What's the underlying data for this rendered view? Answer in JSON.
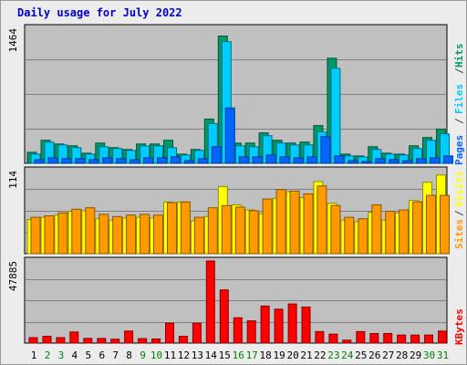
{
  "title": "Daily usage for July 2022",
  "colors": {
    "hits": "#009966",
    "files": "#00ccff",
    "pages": "#0066ff",
    "visits": "#ffff00",
    "sites": "#ff9900",
    "kbytes": "#ff0000",
    "weekday_label": "#000000",
    "weekend_label": "#008000"
  },
  "chart_data": [
    {
      "type": "bar",
      "categories": [
        "1",
        "2",
        "3",
        "4",
        "5",
        "6",
        "7",
        "8",
        "9",
        "10",
        "11",
        "12",
        "13",
        "14",
        "15",
        "16",
        "17",
        "18",
        "19",
        "20",
        "21",
        "22",
        "23",
        "24",
        "25",
        "26",
        "27",
        "28",
        "29",
        "30",
        "31"
      ],
      "weekend_days": [
        "2",
        "3",
        "9",
        "10",
        "16",
        "17",
        "23",
        "24",
        "30",
        "31"
      ],
      "ymax_label": "1464",
      "ylim": [
        0,
        1464
      ],
      "legend": [
        "Pages",
        "/",
        "Files",
        "/",
        "Hits"
      ],
      "series": [
        {
          "name": "Hits",
          "values": [
            120,
            250,
            210,
            190,
            110,
            220,
            170,
            150,
            210,
            210,
            250,
            100,
            150,
            480,
            1380,
            220,
            220,
            330,
            250,
            220,
            230,
            410,
            1140,
            100,
            80,
            180,
            110,
            100,
            190,
            280,
            370
          ]
        },
        {
          "name": "Files",
          "values": [
            100,
            230,
            200,
            170,
            100,
            180,
            160,
            140,
            190,
            190,
            170,
            90,
            140,
            430,
            1320,
            190,
            180,
            300,
            220,
            200,
            200,
            340,
            1030,
            80,
            70,
            150,
            100,
            90,
            160,
            250,
            320
          ]
        },
        {
          "name": "Pages",
          "values": [
            40,
            60,
            50,
            50,
            40,
            60,
            50,
            40,
            60,
            60,
            70,
            30,
            50,
            180,
            600,
            70,
            70,
            90,
            70,
            60,
            70,
            290,
            80,
            30,
            20,
            50,
            40,
            30,
            50,
            60,
            80
          ]
        }
      ]
    },
    {
      "type": "bar",
      "categories": [
        "1",
        "2",
        "3",
        "4",
        "5",
        "6",
        "7",
        "8",
        "9",
        "10",
        "11",
        "12",
        "13",
        "14",
        "15",
        "16",
        "17",
        "18",
        "19",
        "20",
        "21",
        "22",
        "23",
        "24",
        "25",
        "26",
        "27",
        "28",
        "29",
        "30",
        "31"
      ],
      "ymax_label": "114",
      "ylim": [
        0,
        114
      ],
      "legend": [
        "Sites",
        "/",
        "Visits"
      ],
      "series": [
        {
          "name": "Visits",
          "values": [
            47,
            50,
            53,
            58,
            59,
            48,
            46,
            49,
            50,
            49,
            71,
            71,
            45,
            51,
            92,
            67,
            60,
            55,
            76,
            85,
            77,
            99,
            69,
            46,
            44,
            57,
            46,
            56,
            73,
            98,
            108
          ]
        },
        {
          "name": "Sites",
          "values": [
            50,
            52,
            56,
            61,
            63,
            54,
            51,
            53,
            54,
            53,
            70,
            71,
            50,
            63,
            66,
            64,
            59,
            75,
            88,
            86,
            82,
            93,
            66,
            50,
            48,
            67,
            58,
            60,
            71,
            80,
            80
          ]
        }
      ]
    },
    {
      "type": "bar",
      "categories": [
        "1",
        "2",
        "3",
        "4",
        "5",
        "6",
        "7",
        "8",
        "9",
        "10",
        "11",
        "12",
        "13",
        "14",
        "15",
        "16",
        "17",
        "18",
        "19",
        "20",
        "21",
        "22",
        "23",
        "24",
        "25",
        "26",
        "27",
        "28",
        "29",
        "30",
        "31"
      ],
      "ymax_label": "47885",
      "ylim": [
        0,
        47885
      ],
      "legend": [
        "KBytes"
      ],
      "series": [
        {
          "name": "KBytes",
          "values": [
            3200,
            4000,
            3200,
            6500,
            2700,
            2700,
            2300,
            7000,
            2600,
            2400,
            11600,
            4000,
            11600,
            47885,
            31000,
            14800,
            13000,
            21600,
            19800,
            22800,
            21000,
            6700,
            5200,
            1700,
            6700,
            5600,
            5600,
            4700,
            4700,
            4700,
            7000
          ]
        }
      ]
    }
  ]
}
